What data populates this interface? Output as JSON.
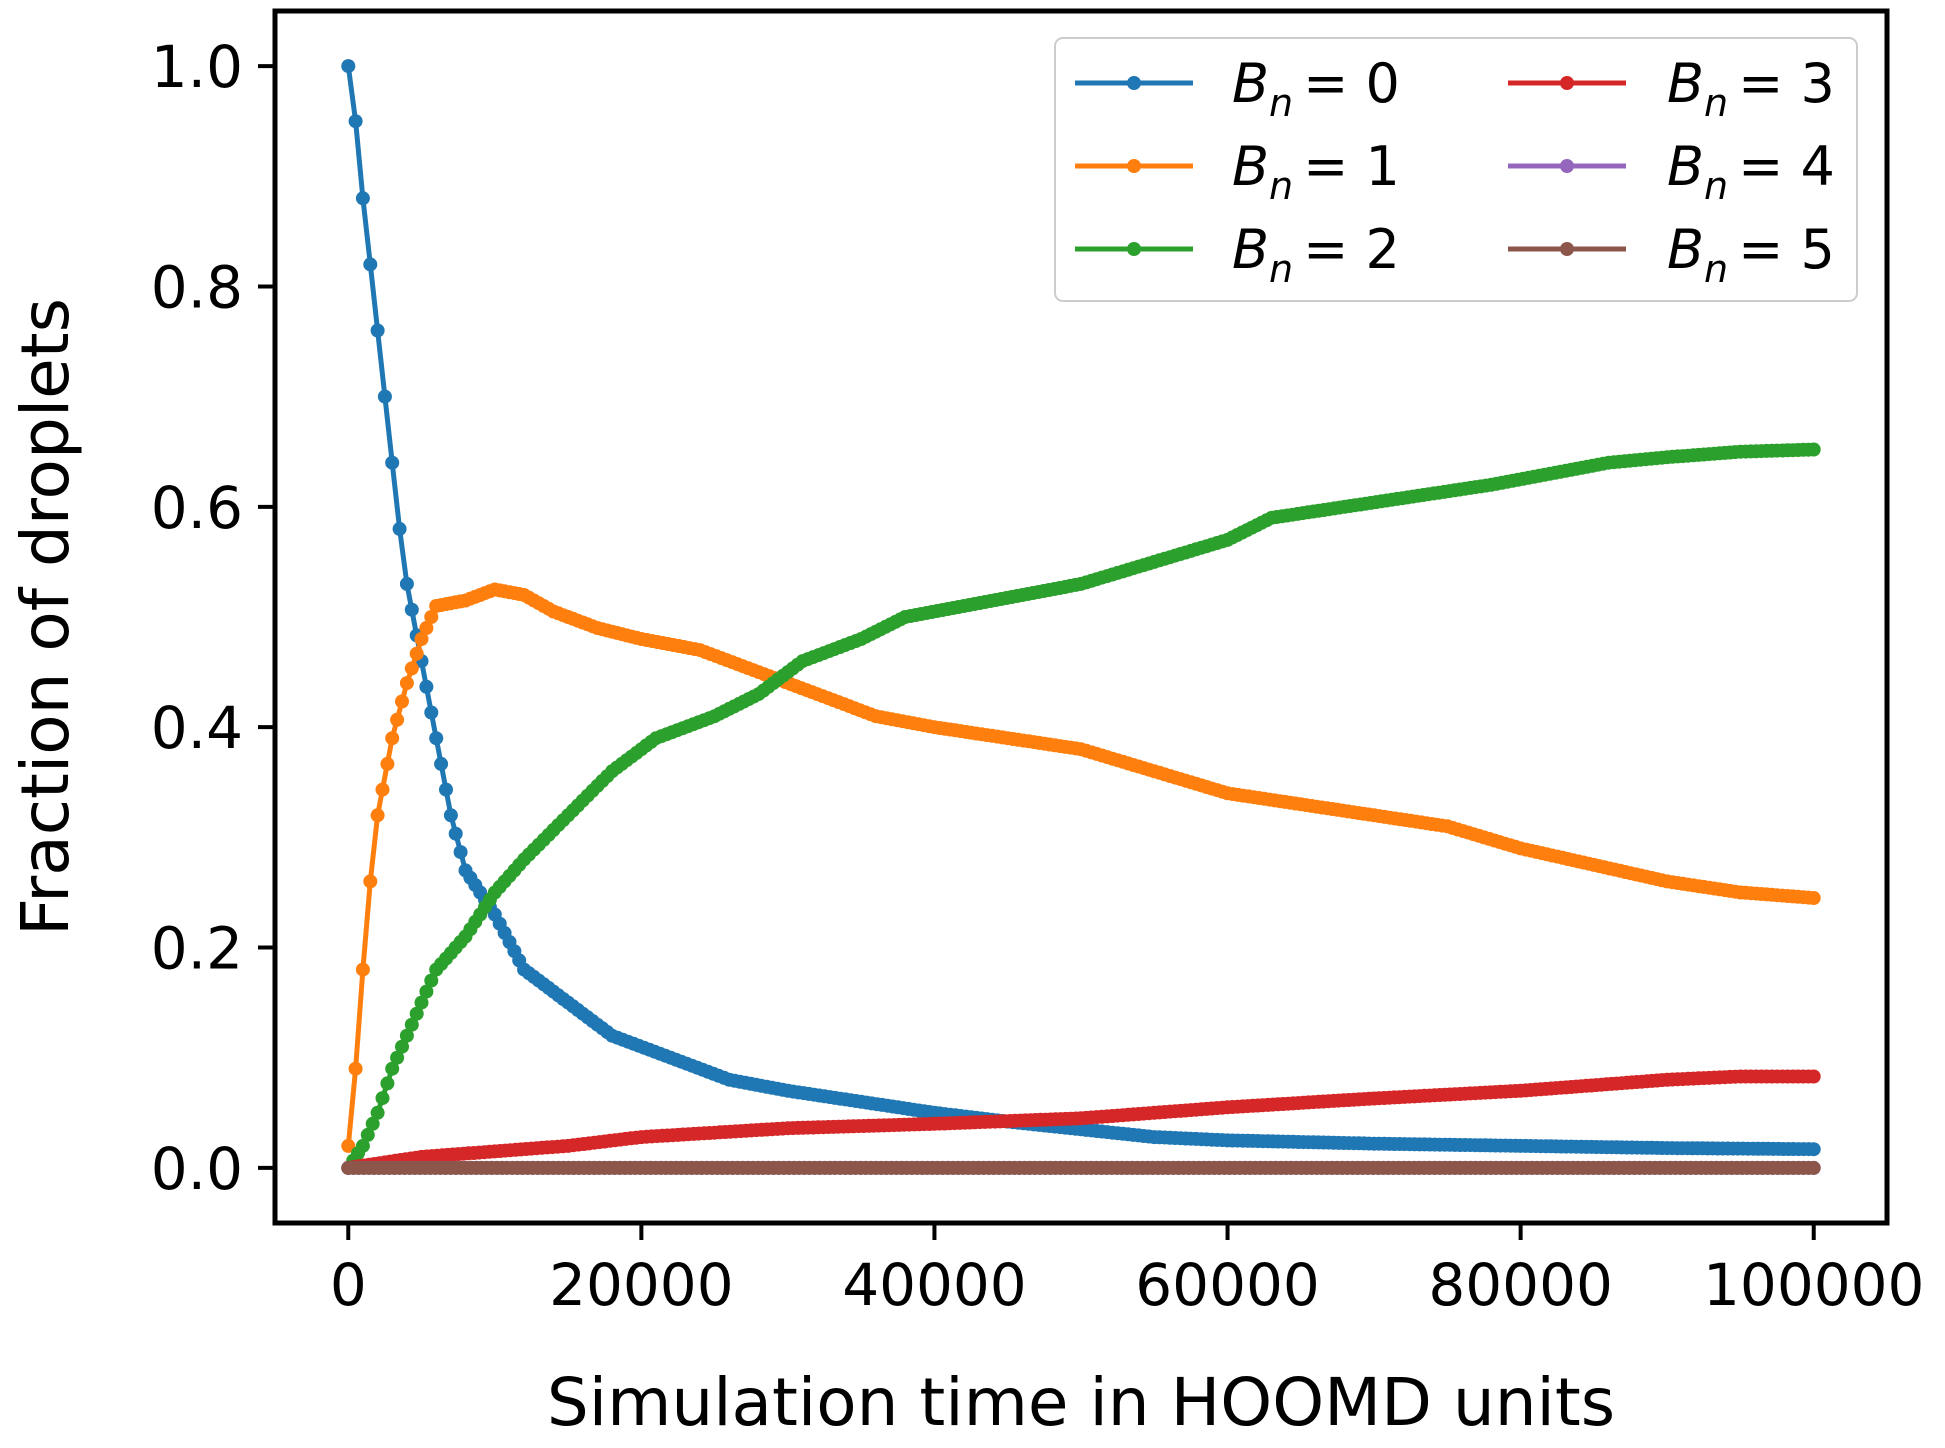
{
  "chart_data": {
    "type": "line",
    "xlabel": "Simulation time in HOOMD units",
    "ylabel": "Fraction of droplets",
    "xlim": [
      -5000,
      105000
    ],
    "ylim": [
      -0.05,
      1.05
    ],
    "x_ticks": [
      0,
      20000,
      40000,
      60000,
      80000,
      100000
    ],
    "x_tick_labels": [
      "0",
      "20000",
      "40000",
      "60000",
      "80000",
      "100000"
    ],
    "y_ticks": [
      0.0,
      0.2,
      0.4,
      0.6,
      0.8,
      1.0
    ],
    "y_tick_labels": [
      "0.0",
      "0.2",
      "0.4",
      "0.6",
      "0.8",
      "1.0"
    ],
    "grid": false,
    "legend_position": "top-right",
    "legend_columns": 2,
    "series": [
      {
        "name": "B_n = 0",
        "legend_var": "B",
        "legend_sub": "n",
        "legend_rhs": "= 0",
        "color": "#1f77b4",
        "points": [
          [
            0,
            1.0
          ],
          [
            500,
            0.95
          ],
          [
            1000,
            0.88
          ],
          [
            1500,
            0.82
          ],
          [
            2000,
            0.76
          ],
          [
            2500,
            0.7
          ],
          [
            3000,
            0.64
          ],
          [
            3500,
            0.58
          ],
          [
            4000,
            0.53
          ],
          [
            5000,
            0.46
          ],
          [
            6000,
            0.39
          ],
          [
            7000,
            0.32
          ],
          [
            8000,
            0.27
          ],
          [
            10000,
            0.23
          ],
          [
            12000,
            0.18
          ],
          [
            15000,
            0.15
          ],
          [
            18000,
            0.12
          ],
          [
            22000,
            0.1
          ],
          [
            26000,
            0.08
          ],
          [
            30000,
            0.07
          ],
          [
            35000,
            0.06
          ],
          [
            40000,
            0.05
          ],
          [
            45000,
            0.042
          ],
          [
            50000,
            0.035
          ],
          [
            55000,
            0.028
          ],
          [
            60000,
            0.025
          ],
          [
            70000,
            0.022
          ],
          [
            80000,
            0.02
          ],
          [
            90000,
            0.018
          ],
          [
            100000,
            0.017
          ]
        ]
      },
      {
        "name": "B_n = 1",
        "legend_var": "B",
        "legend_sub": "n",
        "legend_rhs": "= 1",
        "color": "#ff7f0e",
        "points": [
          [
            0,
            0.02
          ],
          [
            500,
            0.09
          ],
          [
            1000,
            0.18
          ],
          [
            1500,
            0.26
          ],
          [
            2000,
            0.32
          ],
          [
            3000,
            0.39
          ],
          [
            4000,
            0.44
          ],
          [
            5000,
            0.48
          ],
          [
            6000,
            0.51
          ],
          [
            8000,
            0.515
          ],
          [
            10000,
            0.525
          ],
          [
            12000,
            0.52
          ],
          [
            14000,
            0.505
          ],
          [
            17000,
            0.49
          ],
          [
            20000,
            0.48
          ],
          [
            24000,
            0.47
          ],
          [
            28000,
            0.45
          ],
          [
            32000,
            0.43
          ],
          [
            36000,
            0.41
          ],
          [
            40000,
            0.4
          ],
          [
            45000,
            0.39
          ],
          [
            50000,
            0.38
          ],
          [
            55000,
            0.36
          ],
          [
            60000,
            0.34
          ],
          [
            65000,
            0.33
          ],
          [
            70000,
            0.32
          ],
          [
            75000,
            0.31
          ],
          [
            80000,
            0.29
          ],
          [
            85000,
            0.275
          ],
          [
            90000,
            0.26
          ],
          [
            95000,
            0.25
          ],
          [
            100000,
            0.245
          ]
        ]
      },
      {
        "name": "B_n = 2",
        "legend_var": "B",
        "legend_sub": "n",
        "legend_rhs": "= 2",
        "color": "#2ca02c",
        "points": [
          [
            0,
            0.0
          ],
          [
            1000,
            0.02
          ],
          [
            2000,
            0.05
          ],
          [
            3000,
            0.09
          ],
          [
            4000,
            0.12
          ],
          [
            5000,
            0.15
          ],
          [
            6000,
            0.18
          ],
          [
            8000,
            0.21
          ],
          [
            10000,
            0.25
          ],
          [
            12000,
            0.28
          ],
          [
            15000,
            0.32
          ],
          [
            18000,
            0.36
          ],
          [
            21000,
            0.39
          ],
          [
            25000,
            0.41
          ],
          [
            28000,
            0.43
          ],
          [
            31000,
            0.46
          ],
          [
            35000,
            0.48
          ],
          [
            38000,
            0.5
          ],
          [
            42000,
            0.51
          ],
          [
            46000,
            0.52
          ],
          [
            50000,
            0.53
          ],
          [
            55000,
            0.55
          ],
          [
            60000,
            0.57
          ],
          [
            63000,
            0.59
          ],
          [
            68000,
            0.6
          ],
          [
            73000,
            0.61
          ],
          [
            78000,
            0.62
          ],
          [
            82000,
            0.63
          ],
          [
            86000,
            0.64
          ],
          [
            90000,
            0.645
          ],
          [
            95000,
            0.65
          ],
          [
            100000,
            0.652
          ]
        ]
      },
      {
        "name": "B_n = 3",
        "legend_var": "B",
        "legend_sub": "n",
        "legend_rhs": "= 3",
        "color": "#d62728",
        "points": [
          [
            0,
            0.0
          ],
          [
            5000,
            0.01
          ],
          [
            10000,
            0.015
          ],
          [
            15000,
            0.02
          ],
          [
            20000,
            0.028
          ],
          [
            25000,
            0.032
          ],
          [
            30000,
            0.036
          ],
          [
            40000,
            0.04
          ],
          [
            50000,
            0.045
          ],
          [
            55000,
            0.05
          ],
          [
            60000,
            0.055
          ],
          [
            70000,
            0.063
          ],
          [
            80000,
            0.07
          ],
          [
            90000,
            0.08
          ],
          [
            95000,
            0.083
          ],
          [
            100000,
            0.083
          ]
        ]
      },
      {
        "name": "B_n = 4",
        "legend_var": "B",
        "legend_sub": "n",
        "legend_rhs": "= 4",
        "color": "#9467bd",
        "points": [
          [
            0,
            0.0
          ],
          [
            100000,
            0.0
          ]
        ]
      },
      {
        "name": "B_n = 5",
        "legend_var": "B",
        "legend_sub": "n",
        "legend_rhs": "= 5",
        "color": "#8c564b",
        "points": [
          [
            0,
            0.0
          ],
          [
            100000,
            0.0
          ]
        ]
      }
    ]
  }
}
